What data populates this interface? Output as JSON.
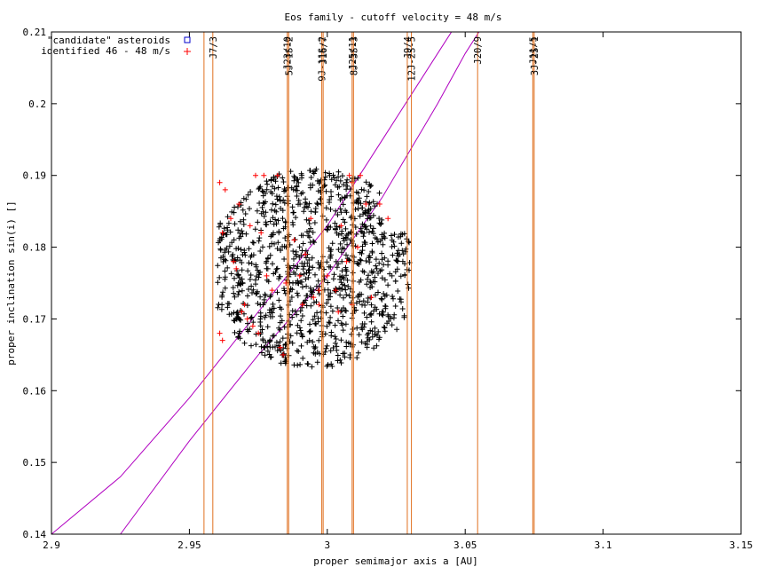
{
  "chart_data": {
    "type": "scatter",
    "title": "Eos family - cutoff velocity = 48 m/s",
    "xlabel": "proper semimajor axis a [AU]",
    "ylabel": "proper inclination sin(i) []",
    "xlim": [
      2.9,
      3.15
    ],
    "ylim": [
      0.14,
      0.21
    ],
    "xticks": [
      2.9,
      2.95,
      3.0,
      3.05,
      3.1,
      3.15
    ],
    "xtick_labels": [
      "2.9",
      "2.95",
      "3",
      "3.05",
      "3.1",
      "3.15"
    ],
    "yticks": [
      0.14,
      0.15,
      0.16,
      0.17,
      0.18,
      0.19,
      0.2,
      0.21
    ],
    "ytick_labels": [
      "0.14",
      "0.15",
      "0.16",
      "0.17",
      "0.18",
      "0.19",
      "0.2",
      "0.21"
    ],
    "grid": false,
    "legend_position": "top-left",
    "legend": [
      {
        "label": "\"candidate\" asteroids",
        "color": "#0000cc",
        "marker": "square"
      },
      {
        "label": "identified 46 - 48 m/s",
        "color": "#ff0000",
        "marker": "plus"
      }
    ],
    "main_cluster": {
      "color": "#000000",
      "marker": "plus",
      "a_range": [
        2.96,
        3.03
      ],
      "sini_range": [
        0.163,
        0.191
      ],
      "count_approx": 1100
    },
    "red_points": [
      [
        2.961,
        0.189
      ],
      [
        2.963,
        0.188
      ],
      [
        2.962,
        0.182
      ],
      [
        2.965,
        0.184
      ],
      [
        2.968,
        0.186
      ],
      [
        2.966,
        0.178
      ],
      [
        2.97,
        0.172
      ],
      [
        2.969,
        0.171
      ],
      [
        2.962,
        0.167
      ],
      [
        2.961,
        0.168
      ],
      [
        2.973,
        0.169
      ],
      [
        2.975,
        0.168
      ],
      [
        2.974,
        0.19
      ],
      [
        2.977,
        0.19
      ],
      [
        2.982,
        0.19
      ],
      [
        2.972,
        0.183
      ],
      [
        2.98,
        0.174
      ],
      [
        2.985,
        0.175
      ],
      [
        2.99,
        0.176
      ],
      [
        2.992,
        0.179
      ],
      [
        2.995,
        0.173
      ],
      [
        2.997,
        0.172
      ],
      [
        3.0,
        0.176
      ],
      [
        3.003,
        0.174
      ],
      [
        3.004,
        0.171
      ],
      [
        3.007,
        0.178
      ],
      [
        3.008,
        0.19
      ],
      [
        3.009,
        0.189
      ],
      [
        3.012,
        0.19
      ],
      [
        3.014,
        0.186
      ],
      [
        3.019,
        0.186
      ],
      [
        3.022,
        0.184
      ],
      [
        3.011,
        0.18
      ],
      [
        3.016,
        0.173
      ],
      [
        2.988,
        0.181
      ],
      [
        2.978,
        0.176
      ],
      [
        2.984,
        0.165
      ],
      [
        2.983,
        0.166
      ],
      [
        2.994,
        0.184
      ],
      [
        3.005,
        0.183
      ],
      [
        2.967,
        0.177
      ],
      [
        2.971,
        0.17
      ],
      [
        2.997,
        0.174
      ],
      [
        3.009,
        0.172
      ],
      [
        2.976,
        0.182
      ],
      [
        2.991,
        0.172
      ]
    ],
    "resonance_lines": [
      {
        "a": 2.9553,
        "label": "",
        "color": "#e07020"
      },
      {
        "a": 2.9585,
        "label": "J7/3",
        "color": "#e07020"
      },
      {
        "a": 2.9855,
        "label": "J23/10",
        "color": "#e07020"
      },
      {
        "a": 2.986,
        "label": "5J-1S-2",
        "color": "#e07020"
      },
      {
        "a": 2.998,
        "label": "9J-11S-2",
        "color": "#e07020"
      },
      {
        "a": 2.9985,
        "label": "J16/7",
        "color": "#e07020"
      },
      {
        "a": 3.009,
        "label": "J25/11",
        "color": "#e07020"
      },
      {
        "a": 3.0095,
        "label": "8J-3S-3",
        "color": "#e07020"
      },
      {
        "a": 3.029,
        "label": "J9/4",
        "color": "#e07020"
      },
      {
        "a": 3.0305,
        "label": "12J-2S-5",
        "color": "#e07020"
      },
      {
        "a": 3.0545,
        "label": "J20/9",
        "color": "#e07020"
      },
      {
        "a": 3.0745,
        "label": "J11/5",
        "color": "#e07020"
      },
      {
        "a": 3.075,
        "label": "3J-2S-1",
        "color": "#e07020"
      }
    ],
    "secular_curves": [
      {
        "color": "#b000c0",
        "points": [
          [
            2.9,
            0.14
          ],
          [
            2.925,
            0.148
          ],
          [
            2.95,
            0.159
          ],
          [
            2.975,
            0.171
          ],
          [
            3.0,
            0.183
          ],
          [
            3.02,
            0.195
          ],
          [
            3.04,
            0.207
          ],
          [
            3.045,
            0.21
          ]
        ]
      },
      {
        "color": "#b000c0",
        "points": [
          [
            2.925,
            0.14
          ],
          [
            2.95,
            0.153
          ],
          [
            2.975,
            0.165
          ],
          [
            3.0,
            0.176
          ],
          [
            3.02,
            0.187
          ],
          [
            3.04,
            0.2
          ],
          [
            3.05,
            0.207
          ],
          [
            3.055,
            0.21
          ]
        ]
      }
    ]
  }
}
